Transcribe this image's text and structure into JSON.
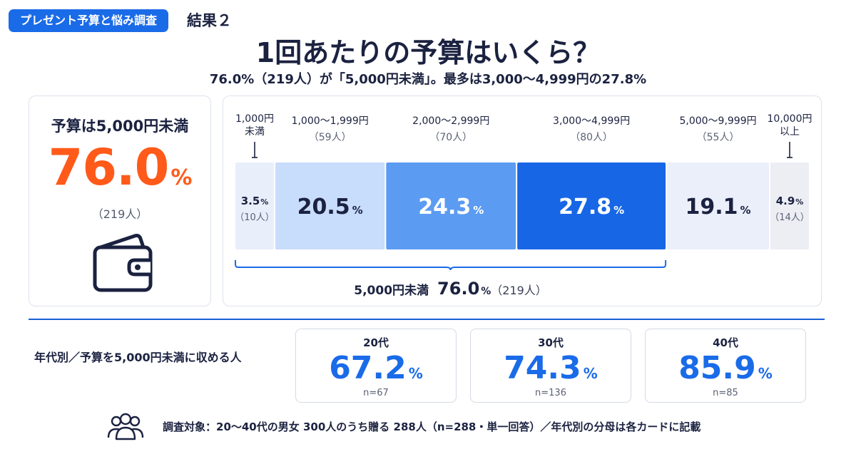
{
  "header": {
    "tag": "プレゼント予算と悩み調査",
    "result": "結果２",
    "title": "1回あたりの予算はいくら？",
    "subtitle": "76.0%（219人）が「5,000円未満」。最多は3,000〜4,999円の27.8%"
  },
  "summary": {
    "label": "予算は5,000円未満",
    "value": "76.0",
    "unit": "%",
    "count": "（219人）",
    "icon": "wallet-icon"
  },
  "chart_data": {
    "type": "bar",
    "orientation": "stacked-horizontal",
    "categories": [
      {
        "label": [
          "1,000円",
          "未満"
        ],
        "count": "（10人）",
        "value": 3.5,
        "value_text": "3.5",
        "color": "#e9eefb",
        "text_color": "#1b2240"
      },
      {
        "label": [
          "1,000～1,999円"
        ],
        "count": "（59人）",
        "value": 20.5,
        "value_text": "20.5",
        "color": "#c8dcfb",
        "text_color": "#1b2240"
      },
      {
        "label": [
          "2,000～2,999円"
        ],
        "count": "（70人）",
        "value": 24.3,
        "value_text": "24.3",
        "color": "#5b9bf2",
        "text_color": "#ffffff"
      },
      {
        "label": [
          "3,000～4,999円"
        ],
        "count": "（80人）",
        "value": 27.8,
        "value_text": "27.8",
        "color": "#1766e6",
        "text_color": "#ffffff"
      },
      {
        "label": [
          "5,000～9,999円"
        ],
        "count": "（55人）",
        "value": 19.1,
        "value_text": "19.1",
        "color": "#ebeffa",
        "text_color": "#1b2240"
      },
      {
        "label": [
          "10,000円",
          "以上"
        ],
        "count": "（14人）",
        "value": 4.9,
        "value_text": "4.9",
        "color": "#eceef4",
        "text_color": "#1b2240"
      }
    ],
    "unit": "%",
    "bracket": {
      "from": 0,
      "to": 3,
      "label": "5,000円未満",
      "value": "76.0",
      "count": "（219人）"
    }
  },
  "age_section": {
    "caption": "年代別／予算を5,000円未満に収める人",
    "cards": [
      {
        "label": "20代",
        "value": "67.2",
        "n": "n=67"
      },
      {
        "label": "30代",
        "value": "74.3",
        "n": "n=136"
      },
      {
        "label": "40代",
        "value": "85.9",
        "n": "n=85"
      }
    ],
    "unit": "%"
  },
  "footer": {
    "icon": "people-icon",
    "text": "調査対象：20～40代の男女 300人のうち贈る 288人（n=288・単一回答）／年代別の分母は各カードに記載"
  }
}
